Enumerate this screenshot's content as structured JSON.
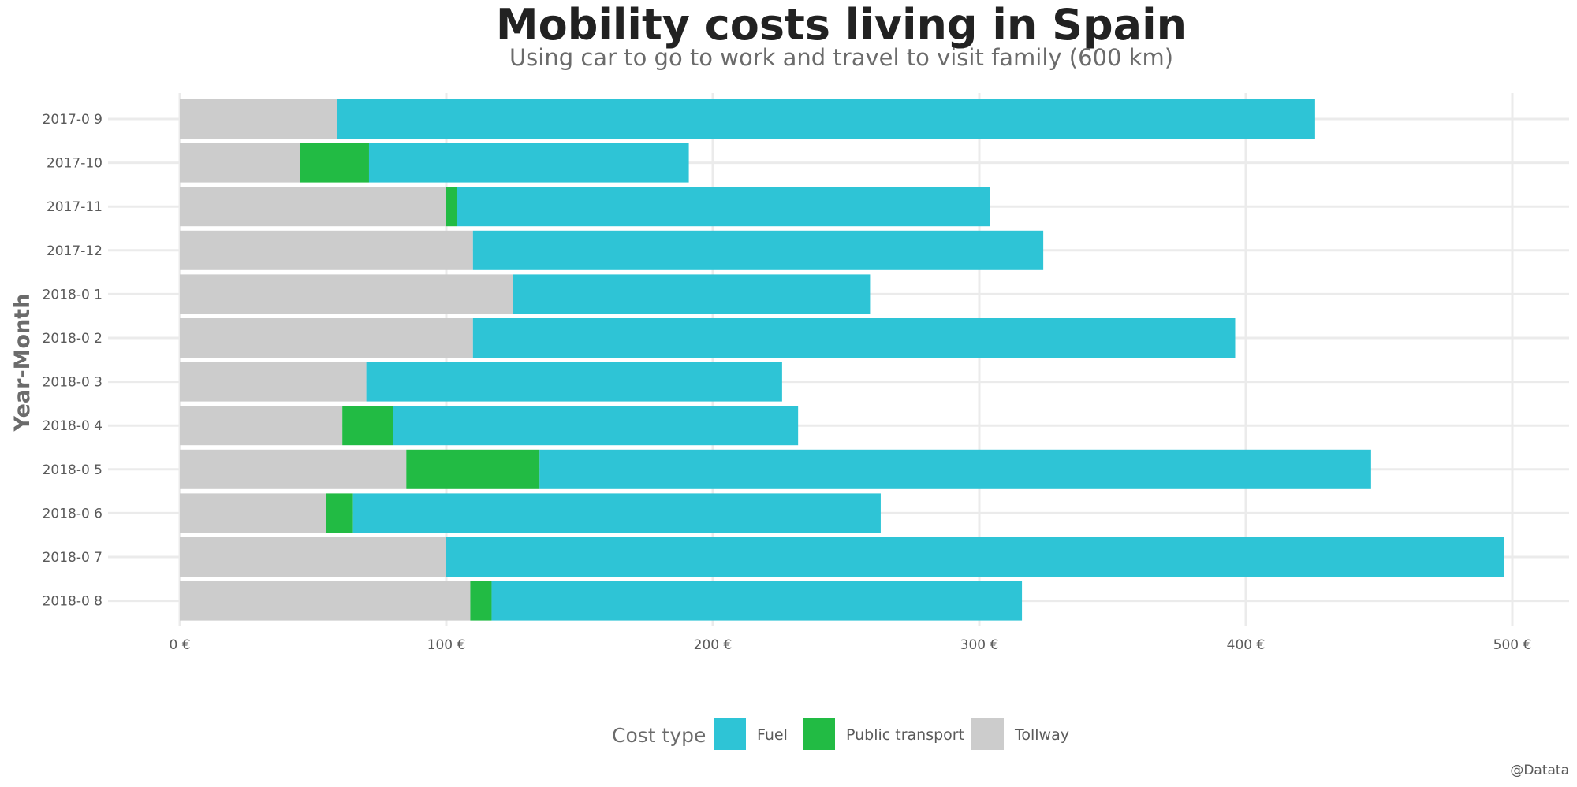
{
  "chart_data": {
    "type": "bar",
    "orientation": "horizontal",
    "stacked": true,
    "title": "Mobility costs living in Spain",
    "subtitle": "Using car to go to work and travel to visit family (600 km)",
    "ylabel": "Year-Month",
    "xlabel": "",
    "categories": [
      "2017-0 9",
      "2017-10",
      "2017-11",
      "2017-12",
      "2018-0 1",
      "2018-0 2",
      "2018-0 3",
      "2018-0 4",
      "2018-0 5",
      "2018-0 6",
      "2018-0 7",
      "2018-0 8"
    ],
    "series": [
      {
        "name": "Tollway",
        "color": "#cccccc",
        "values": [
          59,
          45,
          100,
          110,
          125,
          110,
          70,
          61,
          85,
          55,
          100,
          109
        ]
      },
      {
        "name": "Public transport",
        "color": "#22bb44",
        "values": [
          0,
          26,
          4,
          0,
          0,
          0,
          0,
          19,
          50,
          10,
          0,
          8
        ]
      },
      {
        "name": "Fuel",
        "color": "#2ec4d6",
        "values": [
          367,
          120,
          200,
          214,
          134,
          286,
          156,
          152,
          312,
          198,
          397,
          199
        ]
      }
    ],
    "xlim": [
      0,
      520
    ],
    "xticks": [
      0,
      100,
      200,
      300,
      400,
      500
    ],
    "xtick_labels": [
      "0 €",
      "100 €",
      "200 €",
      "300 €",
      "400 €",
      "500 €"
    ],
    "grid": true,
    "legend": {
      "title": "Cost type",
      "position": "bottom",
      "order": [
        "Fuel",
        "Public transport",
        "Tollway"
      ]
    },
    "caption": "@Datata"
  }
}
